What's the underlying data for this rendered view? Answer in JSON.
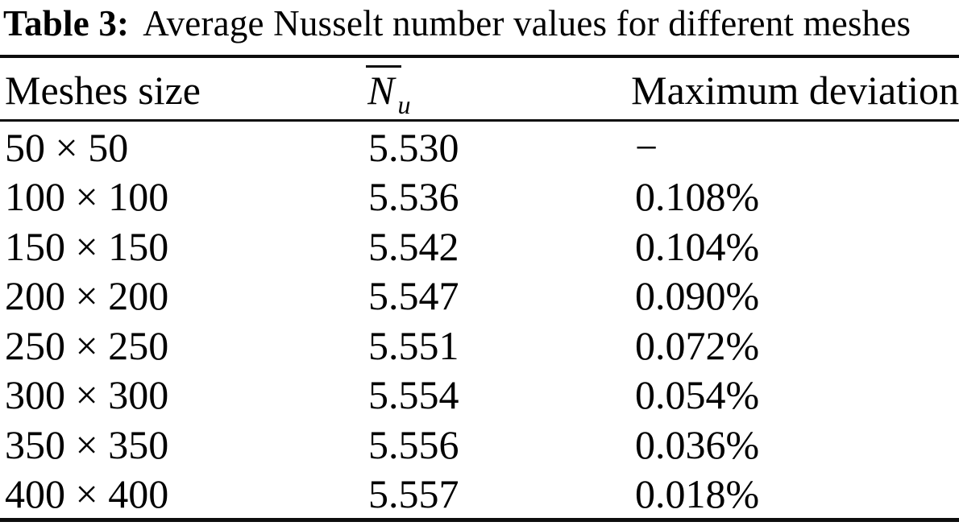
{
  "caption": {
    "label": "Table 3:",
    "text": "Average Nusselt number values for different meshes"
  },
  "table": {
    "headers": {
      "meshes_size": "Meshes size",
      "nusselt": {
        "base": "N",
        "subscript": "u"
      },
      "maximum_deviation": "Maximum deviation"
    },
    "rows": [
      {
        "mesh": "50 × 50",
        "nu": "5.530",
        "deviation": "−"
      },
      {
        "mesh": "100 × 100",
        "nu": "5.536",
        "deviation": "0.108%"
      },
      {
        "mesh": "150 × 150",
        "nu": "5.542",
        "deviation": "0.104%"
      },
      {
        "mesh": "200 × 200",
        "nu": "5.547",
        "deviation": "0.090%"
      },
      {
        "mesh": "250 × 250",
        "nu": "5.551",
        "deviation": "0.072%"
      },
      {
        "mesh": "300 × 300",
        "nu": "5.554",
        "deviation": "0.054%"
      },
      {
        "mesh": "350 × 350",
        "nu": "5.556",
        "deviation": "0.036%"
      },
      {
        "mesh": "400 × 400",
        "nu": "5.557",
        "deviation": "0.018%"
      }
    ]
  }
}
